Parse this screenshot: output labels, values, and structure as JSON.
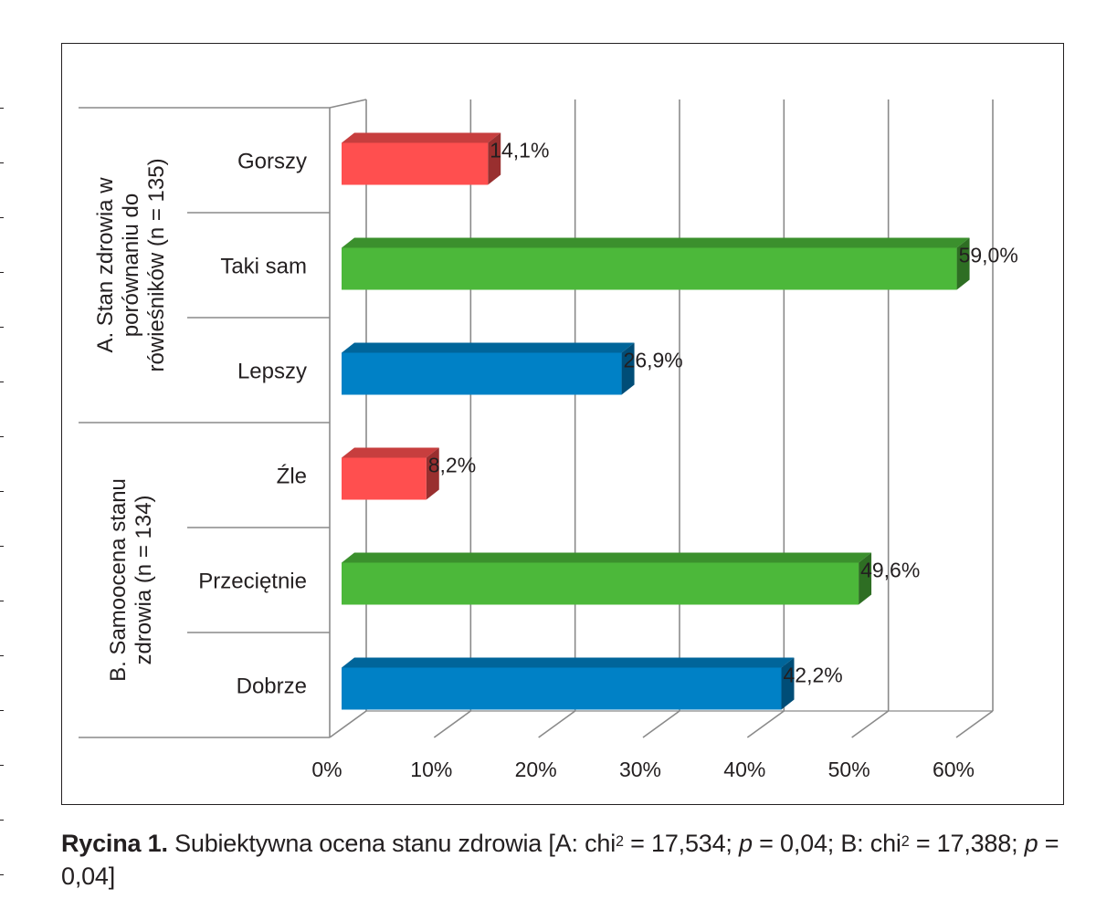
{
  "chart_data": {
    "type": "bar",
    "orientation": "horizontal",
    "style": "3d",
    "groups": [
      {
        "label": "A. Stan zdrowia w porównaniu do rówieśników (n = 135)",
        "label_lines": [
          "A. Stan zdrowia w",
          "porównaniu do",
          "rówieśników (n = 135)"
        ],
        "categories": [
          "Gorszy",
          "Taki sam",
          "Lepszy"
        ],
        "values": [
          14.1,
          59.0,
          26.9
        ],
        "value_labels": [
          "14,1%",
          "59,0%",
          "26,9%"
        ]
      },
      {
        "label": "B. Samoocena stanu zdrowia (n = 134)",
        "label_lines": [
          "B. Samoocena stanu",
          "zdrowia (n = 134)"
        ],
        "categories": [
          "Źle",
          "Przeciętnie",
          "Dobrze"
        ],
        "values": [
          8.2,
          49.6,
          42.2
        ],
        "value_labels": [
          "8,2%",
          "49,6%",
          "42,2%"
        ]
      }
    ],
    "bar_colors": [
      "#ff4f4f",
      "#4cb83a",
      "#0081c6"
    ],
    "xlim": [
      0,
      60
    ],
    "x_ticks": [
      "0%",
      "10%",
      "20%",
      "30%",
      "40%",
      "50%",
      "60%"
    ],
    "grid": true,
    "legend": "none"
  },
  "caption": {
    "label": "Rycina 1.",
    "text_1": " Subiektywna ocena stanu zdrowia [A: chi",
    "sup_1": "2",
    "text_2": " = 17,534; ",
    "p_1": "p",
    "text_3": " = 0,04; B: chi",
    "sup_2": "2",
    "text_4": " = 17,388; ",
    "p_2": "p",
    "text_5": " = 0,04]"
  }
}
